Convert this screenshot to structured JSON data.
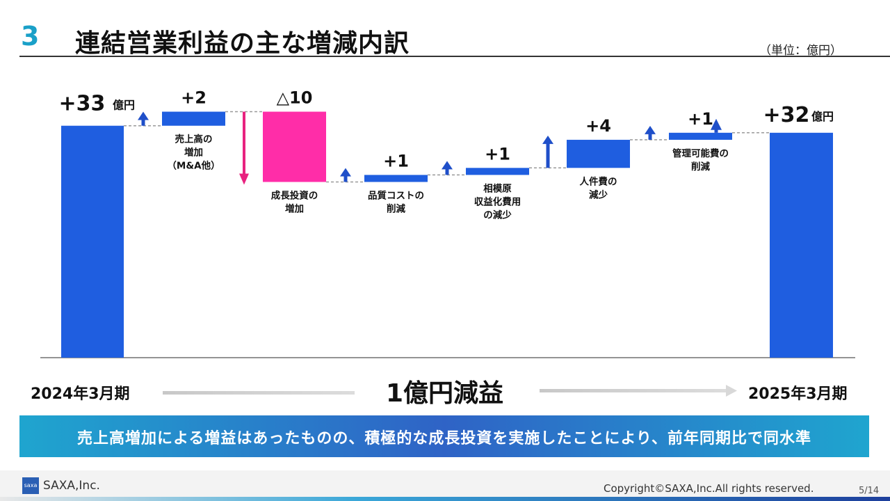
{
  "header": {
    "section_number": "3",
    "title": "連結営業利益の主な増減内訳",
    "unit": "（単位：億円）"
  },
  "chart_data": {
    "type": "waterfall",
    "unit": "億円",
    "ylim": [
      0,
      33
    ],
    "start": {
      "label": "+33",
      "unit": "億円",
      "value": 33
    },
    "end": {
      "label": "+32",
      "unit": "億円",
      "value": 32
    },
    "steps": [
      {
        "value_label": "+2",
        "delta": 2,
        "direction": "up",
        "category": [
          "売上高の",
          "増加",
          "（M&A他）"
        ]
      },
      {
        "value_label": "△10",
        "delta": -10,
        "direction": "down",
        "category": [
          "成長投資の",
          "増加"
        ]
      },
      {
        "value_label": "+1",
        "delta": 1,
        "direction": "up",
        "category": [
          "品質コストの",
          "削減"
        ]
      },
      {
        "value_label": "+1",
        "delta": 1,
        "direction": "up",
        "category": [
          "相模原",
          "収益化費用",
          "の減少"
        ]
      },
      {
        "value_label": "+4",
        "delta": 4,
        "direction": "up",
        "category": [
          "人件費の",
          "減少"
        ]
      },
      {
        "value_label": "+1",
        "delta": 1,
        "direction": "up",
        "category": [
          "管理可能費の",
          "削減"
        ]
      }
    ],
    "colors": {
      "total": "#1f5ee0",
      "increase": "#1f5ee0",
      "decrease": "#ff2da8",
      "arrow_up": "#1f4fc9",
      "arrow_down": "#e8227f"
    }
  },
  "footer_axis": {
    "start_period": "2024年3月期",
    "end_period": "2025年3月期",
    "summary": "1億円減益"
  },
  "banner": {
    "text": "売上高増加による増益はあったものの、積極的な成長投資を実施したことにより、前年同期比で同水準"
  },
  "footer": {
    "logo_text": "saxa",
    "company": "SAXA,Inc.",
    "copyright": "Copyright©SAXA,Inc.All rights reserved.",
    "page": "5/14"
  }
}
